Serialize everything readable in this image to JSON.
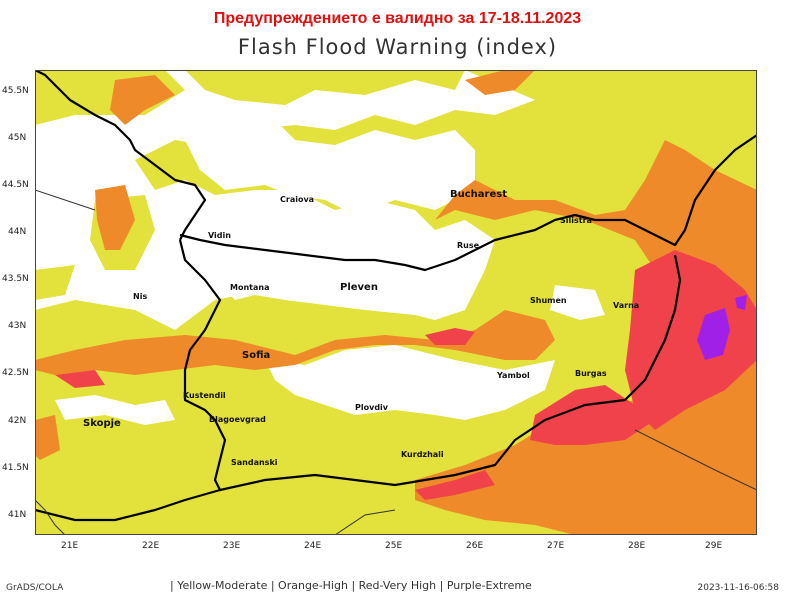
{
  "header": {
    "validity": "Предупреждението е валидно за 17-18.11.2023",
    "title": "Flash Flood Warning (index)"
  },
  "axes": {
    "lat_ticks": [
      "45.5N",
      "45N",
      "44.5N",
      "44N",
      "43.5N",
      "43N",
      "42.5N",
      "42N",
      "41.5N",
      "41N"
    ],
    "lon_ticks": [
      "21E",
      "22E",
      "23E",
      "24E",
      "25E",
      "26E",
      "27E",
      "28E",
      "29E"
    ]
  },
  "cities": [
    {
      "name": "Bucharest",
      "big": true
    },
    {
      "name": "Craiova",
      "big": false
    },
    {
      "name": "Silistra",
      "big": false
    },
    {
      "name": "Vidin",
      "big": false
    },
    {
      "name": "Ruse",
      "big": false
    },
    {
      "name": "Montana",
      "big": false
    },
    {
      "name": "Pleven",
      "big": true
    },
    {
      "name": "Nis",
      "big": false
    },
    {
      "name": "Shumen",
      "big": false
    },
    {
      "name": "Varna",
      "big": false
    },
    {
      "name": "Sofia",
      "big": true
    },
    {
      "name": "Kustendil",
      "big": false
    },
    {
      "name": "Yambol",
      "big": false
    },
    {
      "name": "Burgas",
      "big": false
    },
    {
      "name": "Skopje",
      "big": true
    },
    {
      "name": "Blagoevgrad",
      "big": false
    },
    {
      "name": "Plovdiv",
      "big": false
    },
    {
      "name": "Sandanski",
      "big": false
    },
    {
      "name": "Kurdzhali",
      "big": false
    }
  ],
  "legend": {
    "text": "| Yellow-Moderate | Orange-High | Red-Very High | Purple-Extreme",
    "colors": {
      "yellow": "#e3e13b",
      "orange": "#ee8a2a",
      "red": "#f0424a",
      "purple": "#a020e8"
    }
  },
  "footer": {
    "source": "GrADS/COLA",
    "timestamp": "2023-11-16-06:58"
  }
}
